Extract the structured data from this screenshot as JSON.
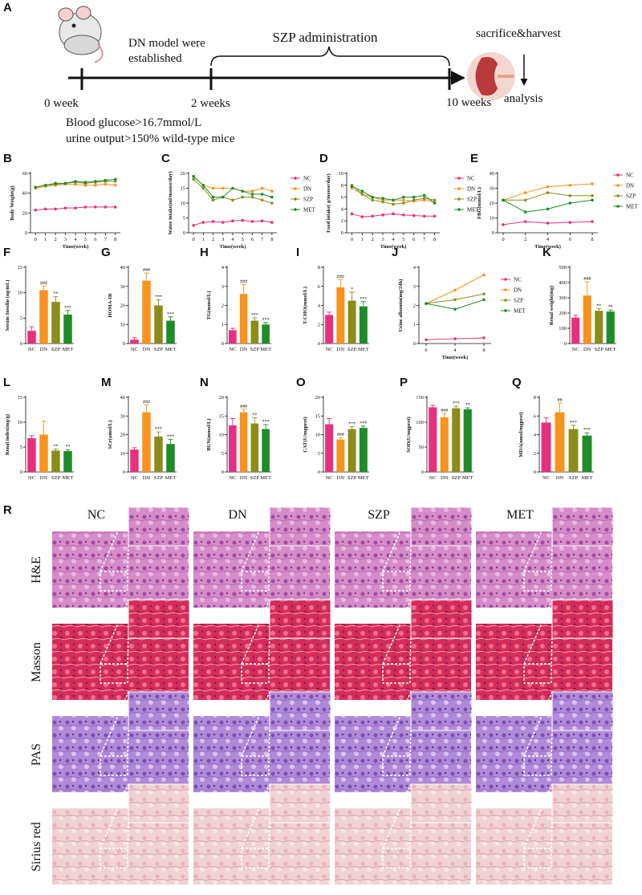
{
  "panel_a": {
    "label": "A",
    "t0": "0 week",
    "dn_model_line1": "DN model were",
    "dn_model_line2": "established",
    "t2": "2 weeks",
    "szp": "SZP administration",
    "t10": "10 weeks",
    "sacrifice": "sacrifice&harvest",
    "analysis": "analysis",
    "criteria_line1": "Blood glucose>16.7mmol/L",
    "criteria_line2": "urine output>150% wild-type mice"
  },
  "chart_data": [
    {
      "type": "line",
      "label": "B",
      "ylabel": "Body Weight(g)",
      "xlabel": "Time(week)",
      "x": [
        0,
        1,
        2,
        3,
        4,
        5,
        6,
        7,
        8
      ],
      "xlim": [
        -0.5,
        8.5
      ],
      "xticks": [
        0,
        1,
        2,
        3,
        4,
        5,
        6,
        7,
        8
      ],
      "ylim": [
        0,
        60
      ],
      "yticks": [
        0,
        20,
        40,
        60
      ],
      "legend": false,
      "series": [
        {
          "name": "NC",
          "color": "#e8307e",
          "values": [
            23,
            24,
            24,
            25,
            25,
            26,
            26,
            26,
            26
          ]
        },
        {
          "name": "DN",
          "color": "#f7931e",
          "values": [
            45,
            47,
            48,
            49,
            49,
            48,
            48,
            49,
            48
          ]
        },
        {
          "name": "SZP",
          "color": "#8c8c1c",
          "values": [
            46,
            48,
            49,
            50,
            51,
            50,
            51,
            52,
            52
          ]
        },
        {
          "name": "MET",
          "color": "#1e8c2a",
          "values": [
            46,
            48,
            50,
            50,
            52,
            51,
            52,
            53,
            54
          ]
        }
      ]
    },
    {
      "type": "line",
      "label": "C",
      "ylabel": "Water intake(ml/mouse/day)",
      "xlabel": "Time(week)",
      "x": [
        0,
        1,
        2,
        3,
        4,
        5,
        6,
        7,
        8
      ],
      "xlim": [
        -0.5,
        8.5
      ],
      "xticks": [
        0,
        1,
        2,
        3,
        4,
        5,
        6,
        7,
        8
      ],
      "ylim": [
        0,
        20
      ],
      "yticks": [
        0,
        5,
        10,
        15,
        20
      ],
      "legend": true,
      "series": [
        {
          "name": "NC",
          "color": "#e8307e",
          "values": [
            2.5,
            3.5,
            3.8,
            3.5,
            4,
            4.2,
            3.8,
            4,
            3.5
          ]
        },
        {
          "name": "DN",
          "color": "#f7931e",
          "values": [
            19,
            16,
            15,
            15,
            15,
            14,
            14,
            15,
            14
          ]
        },
        {
          "name": "SZP",
          "color": "#8c8c1c",
          "values": [
            18,
            15,
            11,
            12,
            11,
            12,
            12,
            11,
            10
          ]
        },
        {
          "name": "MET",
          "color": "#1e8c2a",
          "values": [
            19,
            16,
            12,
            12,
            15,
            14,
            13,
            13,
            12
          ]
        }
      ]
    },
    {
      "type": "line",
      "label": "D",
      "ylabel": "Food intake( g/mouse/day)",
      "xlabel": "Time(week)",
      "x": [
        0,
        1,
        2,
        3,
        4,
        5,
        6,
        7,
        8
      ],
      "xlim": [
        -0.5,
        8.5
      ],
      "xticks": [
        0,
        1,
        2,
        3,
        4,
        5,
        6,
        7,
        8
      ],
      "ylim": [
        0,
        10
      ],
      "yticks": [
        0,
        2,
        4,
        6,
        8,
        10
      ],
      "legend": true,
      "series": [
        {
          "name": "NC",
          "color": "#e8307e",
          "values": [
            3.2,
            2.7,
            2.8,
            3,
            3.2,
            3,
            2.9,
            2.8,
            2.8
          ]
        },
        {
          "name": "DN",
          "color": "#f7931e",
          "values": [
            7.5,
            6.5,
            6,
            5.5,
            5.5,
            5.5,
            5.3,
            5.5,
            5.2
          ]
        },
        {
          "name": "SZP",
          "color": "#8c8c1c",
          "values": [
            8,
            6.5,
            5.5,
            5.2,
            4.8,
            5,
            5.5,
            5.8,
            5.5
          ]
        },
        {
          "name": "MET",
          "color": "#1e8c2a",
          "values": [
            7.8,
            7,
            6,
            5.8,
            5.5,
            6,
            6,
            6.3,
            5
          ]
        }
      ]
    },
    {
      "type": "line",
      "label": "E",
      "ylabel": "FBG(mmol/L)",
      "xlabel": "Time(week)",
      "x": [
        0,
        2,
        4,
        6,
        8
      ],
      "xlim": [
        -0.5,
        8.5
      ],
      "xticks": [
        0,
        2,
        4,
        6,
        8
      ],
      "ylim": [
        0,
        40
      ],
      "yticks": [
        0,
        10,
        20,
        30,
        40
      ],
      "legend": true,
      "series": [
        {
          "name": "NC",
          "color": "#e8307e",
          "values": [
            5.5,
            7.5,
            6.5,
            7,
            7.5
          ]
        },
        {
          "name": "DN",
          "color": "#f7931e",
          "values": [
            22,
            27,
            31,
            32,
            33
          ]
        },
        {
          "name": "SZP",
          "color": "#8c8c1c",
          "values": [
            22,
            22,
            27,
            25,
            25
          ]
        },
        {
          "name": "MET",
          "color": "#1e8c2a",
          "values": [
            22,
            14,
            16,
            20,
            22
          ]
        }
      ]
    },
    {
      "type": "bar",
      "label": "F",
      "ylabel": "Serum Insulin (ng/mL)",
      "categories": [
        "NC",
        "DN",
        "SZP",
        "MET"
      ],
      "colors": [
        "#e8307e",
        "#f7931e",
        "#8c8c1c",
        "#1e8c2a"
      ],
      "values": [
        2.5,
        10.5,
        8.2,
        5.7
      ],
      "errors": [
        0.8,
        0.8,
        1,
        0.8
      ],
      "annotations": [
        null,
        "###",
        "**",
        "***"
      ],
      "ylim": [
        0,
        15
      ],
      "yticks": [
        0,
        5,
        10,
        15
      ]
    },
    {
      "type": "bar",
      "label": "G",
      "ylabel": "HOMA-IR",
      "categories": [
        "NC",
        "DN",
        "SZP",
        "MET"
      ],
      "colors": [
        "#e8307e",
        "#f7931e",
        "#8c8c1c",
        "#1e8c2a"
      ],
      "values": [
        2,
        33,
        20,
        12
      ],
      "errors": [
        1,
        4,
        3,
        2
      ],
      "annotations": [
        null,
        "###",
        "***",
        "***"
      ],
      "ylim": [
        0,
        40
      ],
      "yticks": [
        0,
        10,
        20,
        30,
        40
      ]
    },
    {
      "type": "bar",
      "label": "H",
      "ylabel": "TG(mmol/L)",
      "categories": [
        "NC",
        "DN",
        "SZP",
        "MET"
      ],
      "colors": [
        "#e8307e",
        "#f7931e",
        "#8c8c1c",
        "#1e8c2a"
      ],
      "values": [
        0.7,
        2.6,
        1.2,
        1.0
      ],
      "errors": [
        0.1,
        0.5,
        0.15,
        0.1
      ],
      "annotations": [
        null,
        "###",
        "***",
        "***"
      ],
      "ylim": [
        0,
        4
      ],
      "yticks": [
        0,
        1,
        2,
        3,
        4
      ]
    },
    {
      "type": "bar",
      "label": "I",
      "ylabel": "T-CHO(mmol/L)",
      "categories": [
        "NC",
        "DN",
        "SZP",
        "MET"
      ],
      "colors": [
        "#e8307e",
        "#f7931e",
        "#8c8c1c",
        "#1e8c2a"
      ],
      "values": [
        3,
        5.9,
        4.5,
        3.9
      ],
      "errors": [
        0.3,
        0.8,
        0.9,
        0.5
      ],
      "annotations": [
        null,
        "###",
        "*",
        "***"
      ],
      "ylim": [
        0,
        8
      ],
      "yticks": [
        0,
        2,
        4,
        6,
        8
      ]
    },
    {
      "type": "line",
      "label": "J",
      "ylabel": "Urine albumin(mg/24h)",
      "xlabel": "Time(week)",
      "x": [
        0,
        4,
        8
      ],
      "xlim": [
        -1,
        9
      ],
      "xticks": [
        0,
        4,
        8
      ],
      "ylim": [
        0,
        4
      ],
      "yticks": [
        0,
        1,
        2,
        3,
        4
      ],
      "legend": true,
      "series": [
        {
          "name": "NC",
          "color": "#e8307e",
          "values": [
            0.2,
            0.25,
            0.3
          ]
        },
        {
          "name": "DN",
          "color": "#f7931e",
          "values": [
            2.1,
            2.8,
            3.6
          ]
        },
        {
          "name": "SZP",
          "color": "#8c8c1c",
          "values": [
            2.1,
            2.3,
            2.6
          ]
        },
        {
          "name": "MET",
          "color": "#1e8c2a",
          "values": [
            2.1,
            1.8,
            2.3
          ]
        }
      ]
    },
    {
      "type": "bar",
      "label": "K",
      "ylabel": "Renal weight(mg)",
      "categories": [
        "NC",
        "DN",
        "SZP",
        "MET"
      ],
      "colors": [
        "#e8307e",
        "#f7931e",
        "#8c8c1c",
        "#1e8c2a"
      ],
      "values": [
        170,
        315,
        215,
        210
      ],
      "errors": [
        15,
        90,
        15,
        10
      ],
      "annotations": [
        null,
        "###",
        "**",
        "**"
      ],
      "ylim": [
        0,
        500
      ],
      "yticks": [
        0,
        100,
        200,
        300,
        400,
        500
      ]
    },
    {
      "type": "bar",
      "label": "L",
      "ylabel": "Renal index(mg/g)",
      "categories": [
        "NC",
        "DN",
        "SZP",
        "MET"
      ],
      "colors": [
        "#e8307e",
        "#f7931e",
        "#8c8c1c",
        "#1e8c2a"
      ],
      "values": [
        6.8,
        7.5,
        4.3,
        4.2
      ],
      "errors": [
        0.5,
        2.7,
        0.3,
        0.3
      ],
      "annotations": [
        null,
        null,
        "**",
        "**"
      ],
      "ylim": [
        0,
        15
      ],
      "yticks": [
        0,
        5,
        10,
        15
      ]
    },
    {
      "type": "bar",
      "label": "M",
      "ylabel": "SCr(umol/L)",
      "categories": [
        "NC",
        "DN",
        "SZP",
        "MET"
      ],
      "colors": [
        "#e8307e",
        "#f7931e",
        "#8c8c1c",
        "#1e8c2a"
      ],
      "values": [
        12,
        32,
        19,
        15
      ],
      "errors": [
        1,
        4,
        2.5,
        2.5
      ],
      "annotations": [
        null,
        "###",
        "***",
        "***"
      ],
      "ylim": [
        0,
        40
      ],
      "yticks": [
        0,
        10,
        20,
        30,
        40
      ]
    },
    {
      "type": "bar",
      "label": "N",
      "ylabel": "BUN(mmol/L)",
      "categories": [
        "NC",
        "DN",
        "SZP",
        "MET"
      ],
      "colors": [
        "#e8307e",
        "#f7931e",
        "#8c8c1c",
        "#1e8c2a"
      ],
      "values": [
        12.5,
        16,
        13,
        11.5
      ],
      "errors": [
        1.8,
        0.8,
        1.5,
        1.2
      ],
      "annotations": [
        null,
        "###",
        "**",
        "***"
      ],
      "ylim": [
        0,
        20
      ],
      "yticks": [
        0,
        5,
        10,
        15,
        20
      ]
    },
    {
      "type": "bar",
      "label": "O",
      "ylabel": "CAT(U/mgprot)",
      "categories": [
        "NC",
        "DN",
        "SZP",
        "MET"
      ],
      "colors": [
        "#e8307e",
        "#f7931e",
        "#8c8c1c",
        "#1e8c2a"
      ],
      "values": [
        12.8,
        8.7,
        11.5,
        11.8
      ],
      "errors": [
        1.5,
        0.5,
        0.6,
        0.5
      ],
      "annotations": [
        null,
        "###",
        "***",
        "***"
      ],
      "ylim": [
        0,
        20
      ],
      "yticks": [
        0,
        5,
        10,
        15,
        20
      ]
    },
    {
      "type": "bar",
      "label": "P",
      "ylabel": "SOD(U/mgprot)",
      "categories": [
        "NC",
        "DN",
        "SZP",
        "MET"
      ],
      "colors": [
        "#e8307e",
        "#f7931e",
        "#8c8c1c",
        "#1e8c2a"
      ],
      "values": [
        130,
        110,
        128,
        126
      ],
      "errors": [
        4,
        8,
        4,
        3
      ],
      "annotations": [
        null,
        "###",
        "***",
        "**"
      ],
      "ylim": [
        0,
        150
      ],
      "yticks": [
        0,
        50,
        100,
        150
      ]
    },
    {
      "type": "bar",
      "label": "Q",
      "ylabel": "MDA(nmol/mgprot)",
      "categories": [
        "NC",
        "DN",
        "SZP",
        "MET"
      ],
      "colors": [
        "#e8307e",
        "#f7931e",
        "#8c8c1c",
        "#1e8c2a"
      ],
      "values": [
        5.3,
        6.4,
        4.6,
        3.9
      ],
      "errors": [
        0.5,
        1,
        0.4,
        0.3
      ],
      "annotations": [
        null,
        "##",
        "***",
        "***"
      ],
      "ylim": [
        0,
        8
      ],
      "yticks": [
        0,
        2,
        4,
        6,
        8
      ]
    }
  ],
  "panel_r": {
    "label": "R",
    "columns": [
      "NC",
      "DN",
      "SZP",
      "MET"
    ],
    "rows": [
      "H&E",
      "Masson",
      "PAS",
      "Sirius red"
    ]
  }
}
